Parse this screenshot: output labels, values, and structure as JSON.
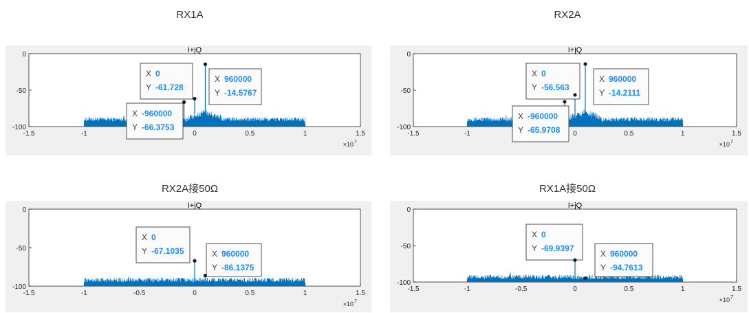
{
  "chart_data": [
    {
      "type": "line",
      "panel_label": "RX1A",
      "title": "I+jQ",
      "xlim": [
        -1.5,
        1.5
      ],
      "ylim": [
        -100,
        0
      ],
      "x_ticks": [
        "-1.5",
        "-1",
        "0",
        "0.5",
        "1",
        "1.5"
      ],
      "y_ticks": [
        "0",
        "-50",
        "-100"
      ],
      "x_exponent": "×10",
      "x_exponent_power": "7",
      "x_range": [
        -1,
        1
      ],
      "x_scale": 10000000,
      "noise_floor": -93,
      "spur_peaks": [
        [
          -0.93,
          -88
        ],
        [
          -0.64,
          -85
        ]
      ],
      "markers": [
        {
          "x_label": "X",
          "y_label": "Y",
          "x": "0",
          "y": "-61.728",
          "xv": 0,
          "yv": -61.728,
          "side": "left"
        },
        {
          "x_label": "X",
          "y_label": "Y",
          "x": "960000",
          "y": "-14.5767",
          "xv": 960000,
          "yv": -14.5767,
          "side": "right"
        },
        {
          "x_label": "X",
          "y_label": "Y",
          "x": "-960000",
          "y": "-66.3753",
          "xv": -960000,
          "yv": -66.3753,
          "side": "below-left"
        }
      ]
    },
    {
      "type": "line",
      "panel_label": "RX2A",
      "title": "I+jQ",
      "xlim": [
        -1.5,
        1.5
      ],
      "ylim": [
        -100,
        0
      ],
      "x_ticks": [
        "-1.5",
        "-1",
        "0",
        "0.5",
        "1",
        "1.5"
      ],
      "y_ticks": [
        "0",
        "-50",
        "-100"
      ],
      "x_exponent": "×10",
      "x_exponent_power": "7",
      "x_range": [
        -1,
        1
      ],
      "x_scale": 10000000,
      "noise_floor": -93,
      "spur_peaks": [
        [
          -0.93,
          -88
        ],
        [
          -0.64,
          -85
        ]
      ],
      "markers": [
        {
          "x_label": "X",
          "y_label": "Y",
          "x": "0",
          "y": "-56.563",
          "xv": 0,
          "yv": -56.563,
          "side": "left"
        },
        {
          "x_label": "X",
          "y_label": "Y",
          "x": "960000",
          "y": "-14.2111",
          "xv": 960000,
          "yv": -14.2111,
          "side": "right"
        },
        {
          "x_label": "X",
          "y_label": "Y",
          "x": "-960000",
          "y": "-65.9708",
          "xv": -960000,
          "yv": -65.9708,
          "side": "below-left"
        }
      ]
    },
    {
      "type": "line",
      "panel_label": "RX2A接50Ω",
      "title": "I+jQ",
      "xlim": [
        -1.5,
        1.5
      ],
      "ylim": [
        -100,
        0
      ],
      "x_ticks": [
        "-1.5",
        "-1",
        "-0.5",
        "0",
        "0.5",
        "1",
        "1.5"
      ],
      "y_ticks": [
        "0",
        "-50",
        "-100"
      ],
      "x_exponent": "×10",
      "x_exponent_power": "7",
      "x_range": [
        -1,
        1
      ],
      "x_scale": 10000000,
      "noise_floor": -95,
      "spur_peaks": [
        [
          -0.6,
          -88
        ],
        [
          -0.3,
          -89
        ]
      ],
      "markers": [
        {
          "x_label": "X",
          "y_label": "Y",
          "x": "0",
          "y": "-67.1035",
          "xv": 0,
          "yv": -67.1035,
          "side": "left"
        },
        {
          "x_label": "X",
          "y_label": "Y",
          "x": "960000",
          "y": "-86.1375",
          "xv": 960000,
          "yv": -86.1375,
          "side": "right"
        }
      ]
    },
    {
      "type": "line",
      "panel_label": "RX1A接50Ω",
      "title": "I+jQ",
      "xlim": [
        -1.5,
        1.5
      ],
      "ylim": [
        -100,
        0
      ],
      "x_ticks": [
        "-1.5",
        "-1",
        "-0.5",
        "0",
        "0.5",
        "1",
        "1.5"
      ],
      "y_ticks": [
        "0",
        "-50",
        "-100"
      ],
      "x_exponent": "×10",
      "x_exponent_power": "7",
      "x_range": [
        -1,
        1
      ],
      "x_scale": 10000000,
      "noise_floor": -96,
      "spur_peaks": [
        [
          -0.6,
          -87
        ],
        [
          -0.3,
          -90
        ],
        [
          -0.76,
          -92
        ]
      ],
      "markers": [
        {
          "x_label": "X",
          "y_label": "Y",
          "x": "0",
          "y": "-69.9397",
          "xv": 0,
          "yv": -69.9397,
          "side": "left"
        },
        {
          "x_label": "X",
          "y_label": "Y",
          "x": "960000",
          "y": "-94.7613",
          "xv": 960000,
          "yv": -94.7613,
          "side": "right"
        }
      ]
    }
  ],
  "colors": {
    "trace": "#0072bd",
    "marker_value": "#1a8cff",
    "figure_bg": "#f0f0f0",
    "axes_bg": "#ffffff"
  }
}
